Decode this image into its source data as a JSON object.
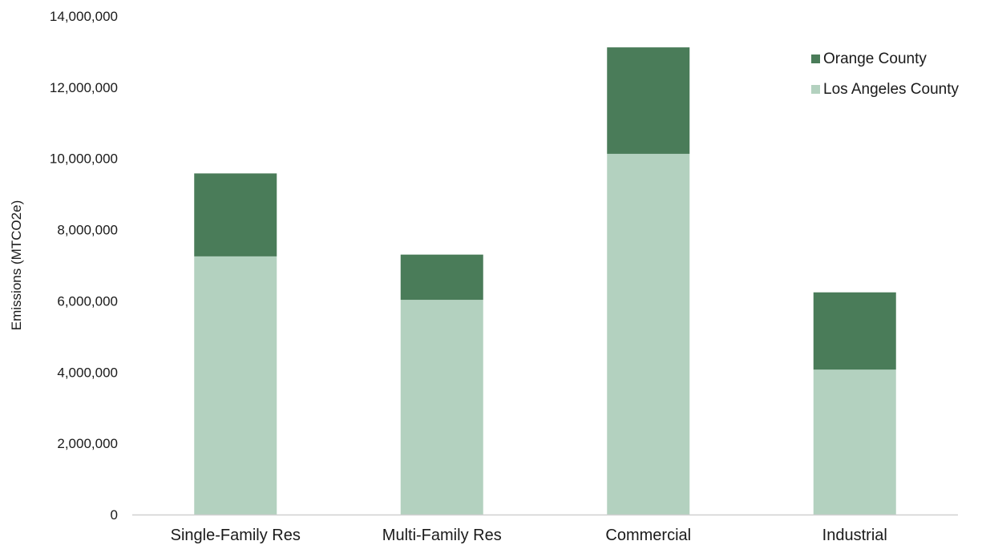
{
  "chart_data": {
    "type": "bar",
    "stacked": true,
    "title": "",
    "xlabel": "",
    "ylabel": "Emissions (MTCO2e)",
    "ylim": [
      0,
      14000000
    ],
    "yticks": [
      0,
      2000000,
      4000000,
      6000000,
      8000000,
      10000000,
      12000000,
      14000000
    ],
    "ytick_labels": [
      "0",
      "2,000,000",
      "4,000,000",
      "6,000,000",
      "8,000,000",
      "10,000,000",
      "12,000,000",
      "14,000,000"
    ],
    "categories": [
      "Single-Family Res",
      "Multi-Family Res",
      "Commercial",
      "Industrial"
    ],
    "series": [
      {
        "name": "Los Angeles County",
        "color": "#b3d1bf",
        "values": [
          7250000,
          6030000,
          10130000,
          4070000
        ]
      },
      {
        "name": "Orange County",
        "color": "#4a7c59",
        "values": [
          2330000,
          1270000,
          2990000,
          2170000
        ]
      }
    ],
    "legend": {
      "position": "top-right",
      "entries": [
        "Orange County",
        "Los Angeles County"
      ]
    },
    "grid": false
  }
}
